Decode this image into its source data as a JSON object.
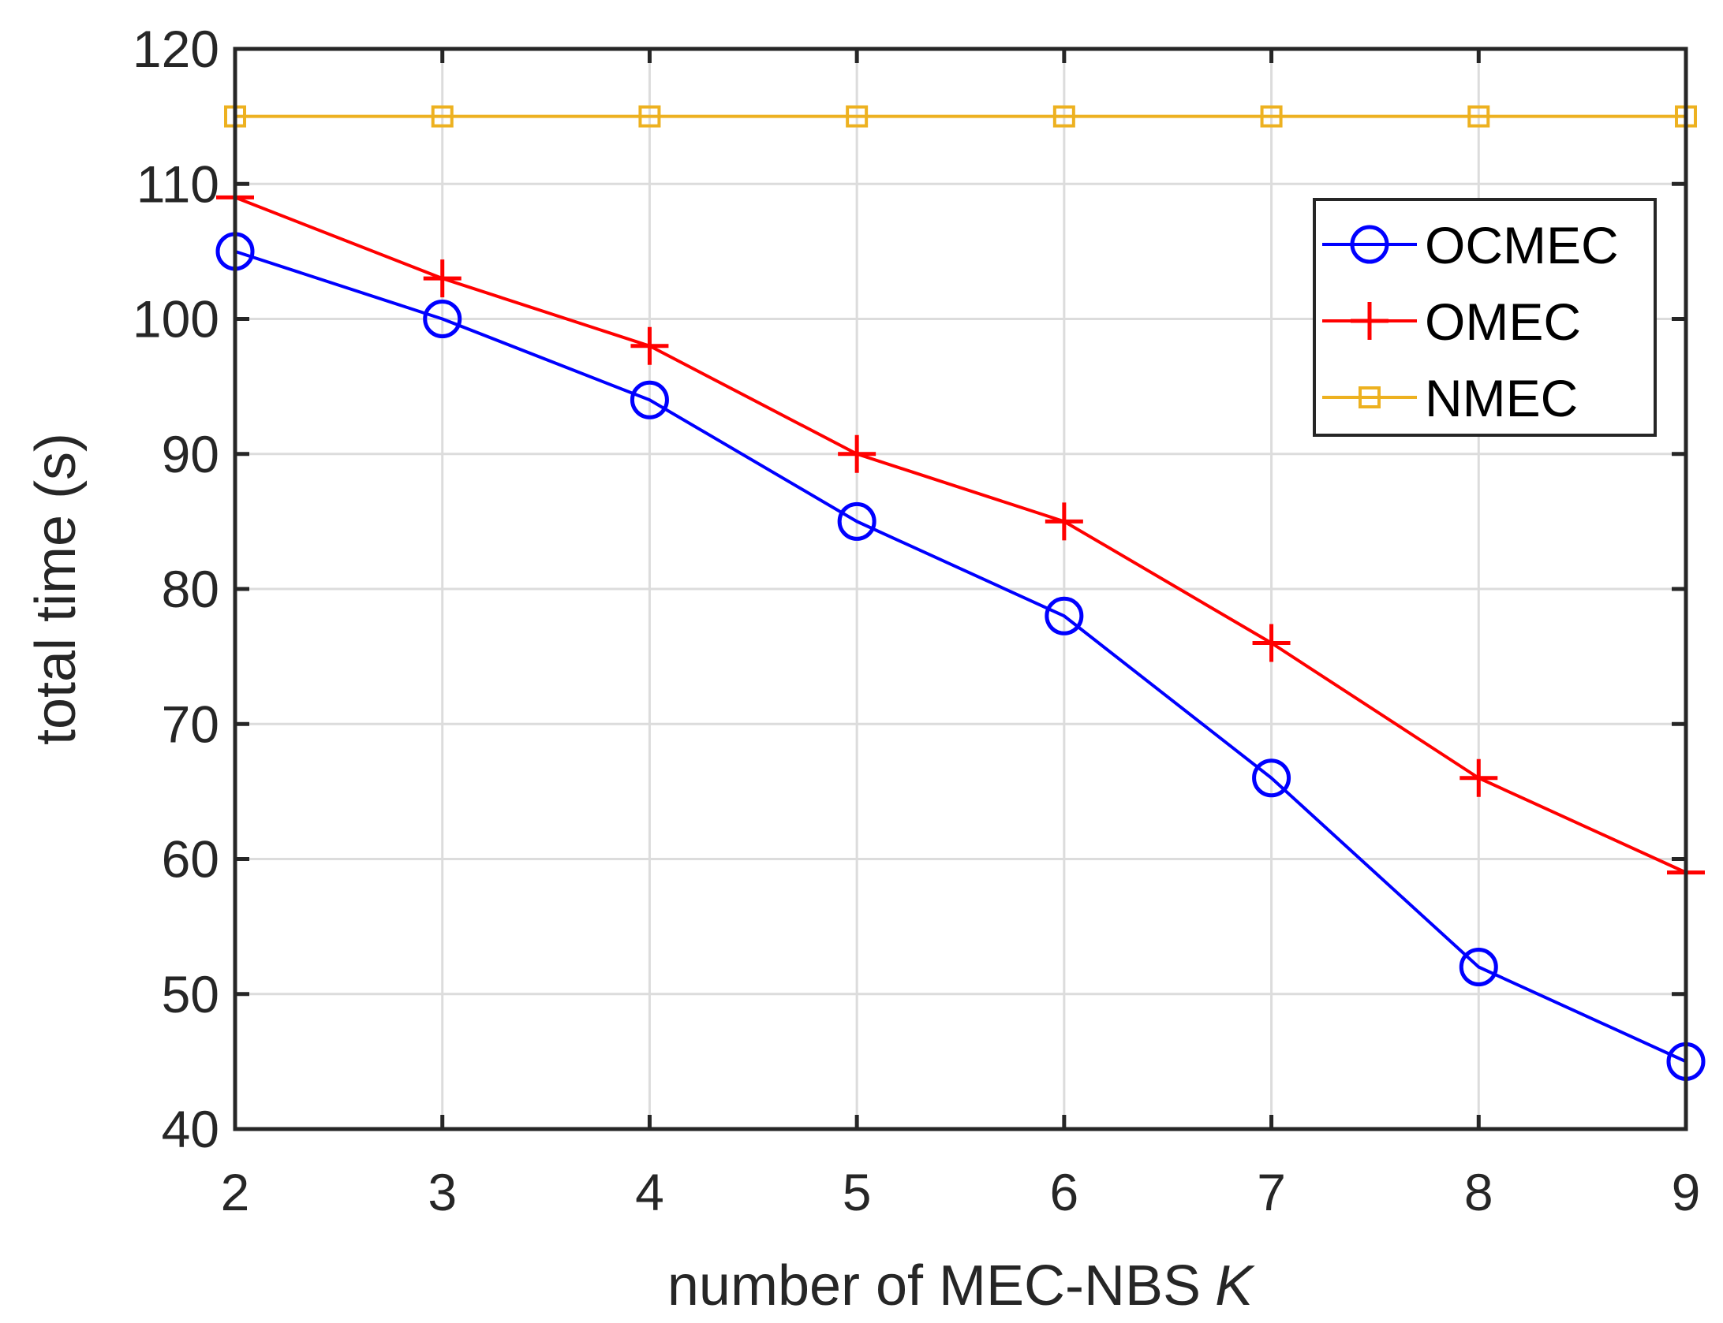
{
  "chart_data": {
    "type": "line",
    "title": "",
    "xlabel": "number of MEC-NBS",
    "xlabel_var": "K",
    "ylabel": "total time (s)",
    "x": [
      2,
      3,
      4,
      5,
      6,
      7,
      8,
      9
    ],
    "xlim": [
      2,
      9
    ],
    "ylim": [
      40,
      120
    ],
    "xticks": [
      2,
      3,
      4,
      5,
      6,
      7,
      8,
      9
    ],
    "yticks": [
      40,
      50,
      60,
      70,
      80,
      90,
      100,
      110,
      120
    ],
    "grid": true,
    "legend_position": "top-right",
    "series": [
      {
        "name": "OCMEC",
        "color": "#0000ff",
        "marker": "circle",
        "values": [
          105,
          100,
          94,
          85,
          78,
          66,
          52,
          45
        ]
      },
      {
        "name": "OMEC",
        "color": "#ff0000",
        "marker": "plus",
        "values": [
          109,
          103,
          98,
          90,
          85,
          76,
          66,
          59
        ]
      },
      {
        "name": "NMEC",
        "color": "#edb120",
        "marker": "square",
        "values": [
          115,
          115,
          115,
          115,
          115,
          115,
          115,
          115
        ]
      }
    ]
  }
}
